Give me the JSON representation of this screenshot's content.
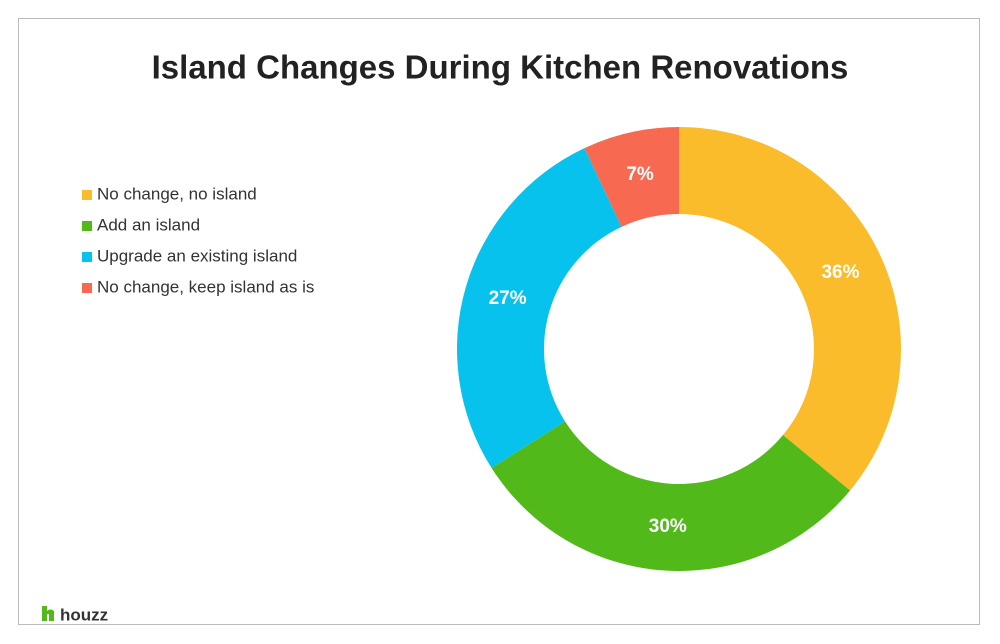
{
  "chart_data": {
    "type": "donut",
    "title": "Island Changes During Kitchen Renovations",
    "categories": [
      "No change, no island",
      "Add an island",
      "Upgrade an existing island",
      "No change, keep island as is"
    ],
    "values": [
      36,
      30,
      27,
      7
    ],
    "value_labels": [
      "36%",
      "30%",
      "27%",
      "7%"
    ],
    "colors": [
      "#fbbc2b",
      "#52b91a",
      "#08c2ee",
      "#f76a51"
    ],
    "legend": "left"
  },
  "logo": "houzz"
}
